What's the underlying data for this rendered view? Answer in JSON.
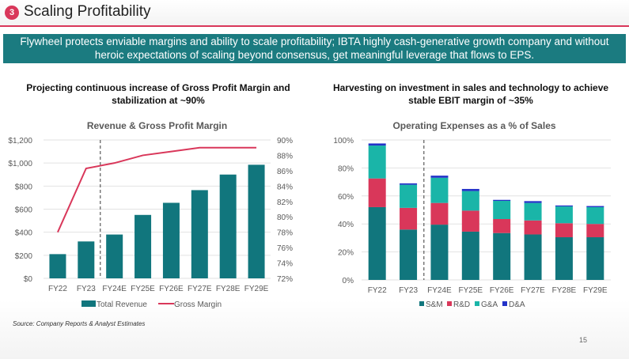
{
  "header": {
    "badge": "3",
    "title": "Scaling Profitability"
  },
  "banner": {
    "line1": "Flywheel protects enviable margins and ability to scale profitability; IBTA highly cash-generative growth company and without",
    "line2": "heroic expectations of scaling beyond consensus, get meaningful leverage that flows to EPS."
  },
  "left_subtitle": {
    "line1": "Projecting continuous increase of Gross Profit Margin and",
    "line2": "stabilization at ~90%"
  },
  "right_subtitle": {
    "line1": "Harvesting on investment in sales and technology to achieve",
    "line2": "stable EBIT margin of ~35%"
  },
  "source": "Source: Company Reports & Analyst Estimates",
  "page_number": "15",
  "colors": {
    "teal": "#11767d",
    "pink": "#d9375a",
    "aqua": "#1ab5a8",
    "blue": "#2332c8"
  },
  "chart_data": [
    {
      "type": "bar+line",
      "title": "Revenue & Gross Profit Margin",
      "categories": [
        "FY22",
        "FY23",
        "FY24E",
        "FY25E",
        "FY26E",
        "FY27E",
        "FY28E",
        "FY29E"
      ],
      "series": [
        {
          "name": "Total Revenue",
          "axis": "left",
          "values": [
            210,
            320,
            380,
            550,
            655,
            765,
            900,
            985
          ]
        },
        {
          "name": "Gross Margin",
          "axis": "right",
          "values": [
            78,
            86.3,
            87,
            88,
            88.5,
            89,
            89,
            89
          ]
        }
      ],
      "ylim": [
        0,
        1200
      ],
      "yticks": [
        "$0",
        "$200",
        "$400",
        "$600",
        "$800",
        "$1,000",
        "$1,200"
      ],
      "y2lim": [
        72,
        90
      ],
      "y2ticks": [
        "72%",
        "74%",
        "76%",
        "78%",
        "80%",
        "82%",
        "84%",
        "86%",
        "88%",
        "90%"
      ],
      "legend": "bottom",
      "grid": true,
      "divider_after": "FY23"
    },
    {
      "type": "stacked-bar",
      "title": "Operating Expenses as a % of Sales",
      "categories": [
        "FY22",
        "FY23",
        "FY24E",
        "FY25E",
        "FY26E",
        "FY27E",
        "FY28E",
        "FY29E"
      ],
      "series": [
        {
          "name": "S&M",
          "values": [
            52,
            36,
            39.5,
            34.5,
            33.5,
            32.5,
            30.5,
            30.5
          ]
        },
        {
          "name": "R&D",
          "values": [
            20.5,
            15.5,
            15.5,
            15,
            10,
            10,
            10,
            9.5
          ]
        },
        {
          "name": "G&A",
          "values": [
            23.5,
            16.5,
            18,
            14,
            13,
            12.5,
            12,
            12
          ]
        },
        {
          "name": "D&A",
          "values": [
            1.5,
            1,
            1.5,
            1.5,
            0.7,
            1.3,
            0.7,
            0.8
          ]
        }
      ],
      "ylim": [
        0,
        100
      ],
      "yticks": [
        "0%",
        "20%",
        "40%",
        "60%",
        "80%",
        "100%"
      ],
      "legend": "bottom",
      "grid": true,
      "divider_after": "FY23"
    }
  ]
}
